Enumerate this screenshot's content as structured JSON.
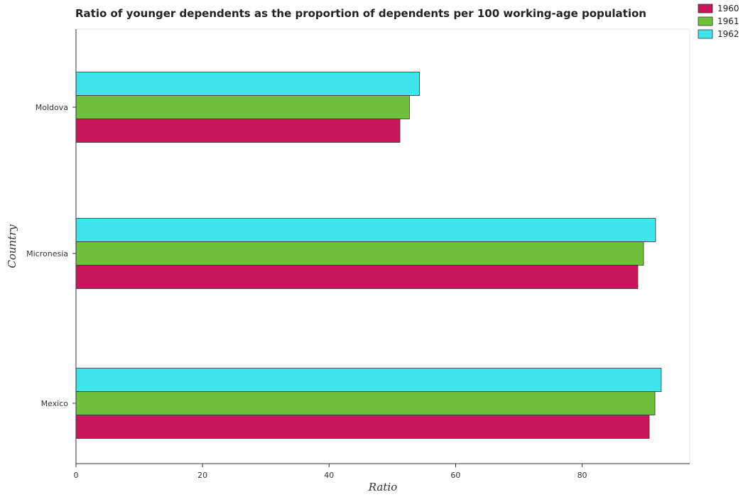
{
  "chart_data": {
    "type": "bar",
    "orientation": "horizontal",
    "title": "Ratio of younger dependents as the proportion of dependents per 100 working-age population",
    "xlabel": "Ratio",
    "ylabel": "Country",
    "categories": [
      "Mexico",
      "Micronesia",
      "Moldova"
    ],
    "series": [
      {
        "name": "1960",
        "color": "#c8175d",
        "values": [
          90.6,
          88.8,
          51.2
        ]
      },
      {
        "name": "1961",
        "color": "#6fc03a",
        "values": [
          91.5,
          89.7,
          52.7
        ]
      },
      {
        "name": "1962",
        "color": "#3ee6ec",
        "values": [
          92.5,
          91.6,
          54.3
        ]
      }
    ],
    "xlim": [
      0,
      97
    ],
    "xticks": [
      0,
      20,
      40,
      60,
      80
    ],
    "grid": false,
    "legend_position": "top-right"
  }
}
